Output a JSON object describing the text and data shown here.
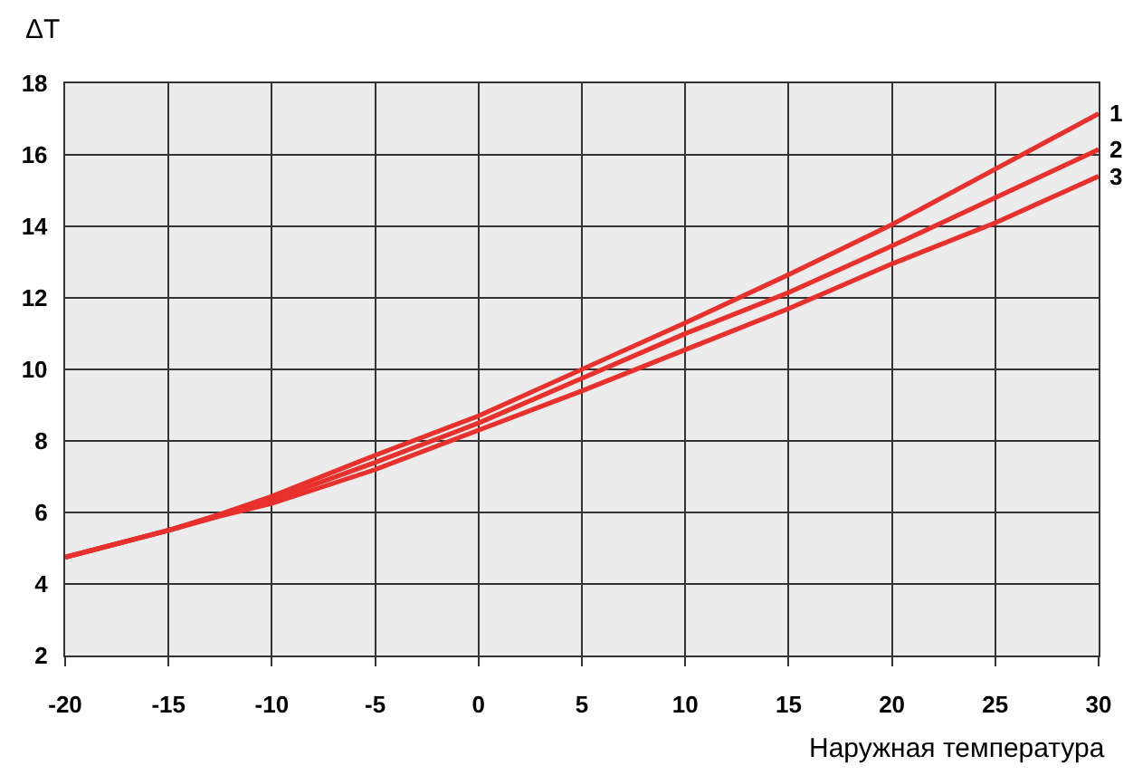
{
  "chart_data": {
    "type": "line",
    "xlabel": "Наружная температура",
    "ylabel": "ΔT",
    "x": [
      -20,
      -15,
      -12.5,
      -10,
      -5,
      0,
      5,
      10,
      15,
      20,
      25,
      30
    ],
    "series": [
      {
        "name": "1",
        "color": "#e8302c",
        "values": [
          4.75,
          5.5,
          5.95,
          6.45,
          7.6,
          8.7,
          10.0,
          11.3,
          12.65,
          14.05,
          15.6,
          17.15
        ]
      },
      {
        "name": "2",
        "color": "#e8302c",
        "values": [
          4.75,
          5.5,
          5.92,
          6.35,
          7.4,
          8.5,
          9.75,
          11.0,
          12.15,
          13.45,
          14.8,
          16.15
        ]
      },
      {
        "name": "3",
        "color": "#e8302c",
        "values": [
          4.75,
          5.5,
          5.9,
          6.25,
          7.2,
          8.3,
          9.4,
          10.55,
          11.7,
          12.95,
          14.1,
          15.4
        ]
      }
    ],
    "xlim": [
      -20,
      30
    ],
    "xticks": [
      -20,
      -15,
      -10,
      -5,
      0,
      5,
      10,
      15,
      20,
      25,
      30
    ],
    "ylim": [
      2,
      18
    ],
    "yticks": [
      2,
      4,
      6,
      8,
      10,
      12,
      14,
      16,
      18
    ],
    "grid": true,
    "line_style": "solid"
  }
}
